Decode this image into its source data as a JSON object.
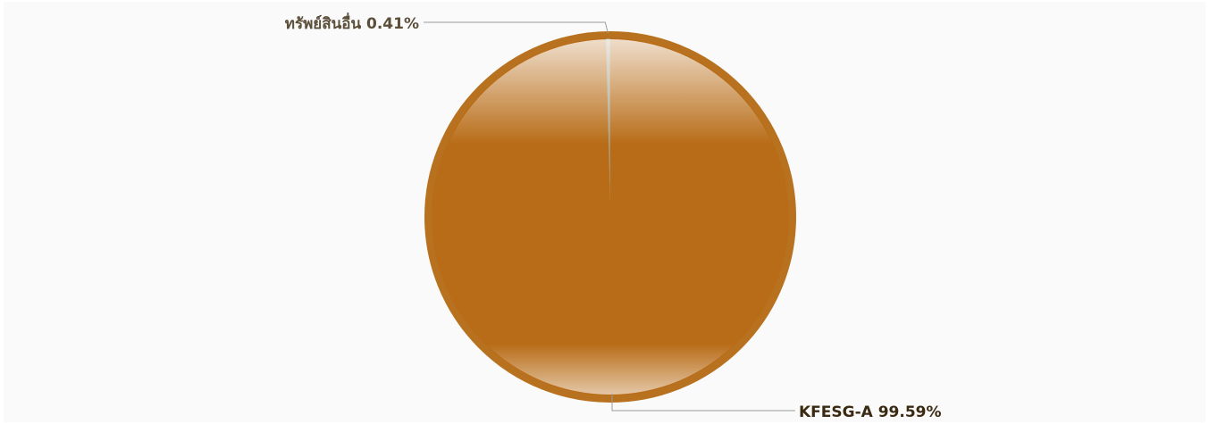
{
  "chart_data": {
    "type": "pie",
    "title": "",
    "slices": [
      {
        "label": "ทรัพย์สินอื่น 0.41%",
        "name": "ทรัพย์สินอื่น",
        "value": 0.41,
        "color": "#a7a18a",
        "label_color": "#5b4f3a"
      },
      {
        "label": "KFESG-A 99.59%",
        "name": "KFESG-A",
        "value": 99.59,
        "color": "#b86c17",
        "label_color": "#3b2a12"
      }
    ],
    "start_angle_deg": 0,
    "direction": "counterclockwise",
    "legend": "none"
  }
}
